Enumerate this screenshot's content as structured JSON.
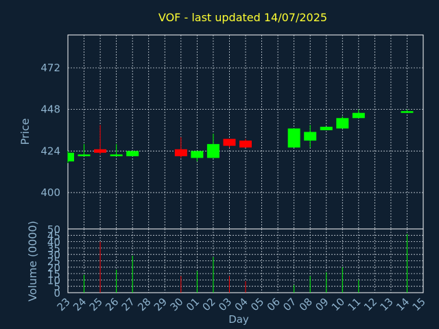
{
  "colors": {
    "background": "#0f1f30",
    "up": "#00ff00",
    "down": "#ff0000",
    "grid": "#d0d8e0",
    "axis_text": "#8fb4cf",
    "title": "#ffff33"
  },
  "chart_data": {
    "type": "candlestick",
    "title": "VOF - last updated 14/07/2025",
    "xlabel": "Day",
    "price": {
      "ylabel": "Price",
      "ylim": [
        379,
        491
      ],
      "yticks": [
        400,
        424,
        448,
        472
      ],
      "grid": true
    },
    "volume": {
      "ylabel": "Volume (0000)",
      "ylim": [
        0,
        50
      ],
      "yticks": [
        0,
        5,
        10,
        15,
        20,
        25,
        30,
        35,
        40,
        45,
        50
      ],
      "grid": true
    },
    "x_ticks": [
      "23",
      "24",
      "25",
      "26",
      "27",
      "28",
      "29",
      "30",
      "01",
      "02",
      "03",
      "04",
      "05",
      "06",
      "07",
      "08",
      "09",
      "10",
      "11",
      "12",
      "13",
      "14",
      "15"
    ],
    "candles": [
      {
        "day": "23",
        "open": 418,
        "high": 424,
        "low": 417,
        "close": 423,
        "volume": 0
      },
      {
        "day": "24",
        "open": 421,
        "high": 428,
        "low": 421,
        "close": 422,
        "volume": 14
      },
      {
        "day": "25",
        "open": 425,
        "high": 439,
        "low": 422,
        "close": 423,
        "volume": 40
      },
      {
        "day": "26",
        "open": 421,
        "high": 428,
        "low": 421,
        "close": 422,
        "volume": 18
      },
      {
        "day": "27",
        "open": 421,
        "high": 424,
        "low": 421,
        "close": 424,
        "volume": 29
      },
      {
        "day": "30",
        "open": 425,
        "high": 432,
        "low": 420,
        "close": 421,
        "volume": 13
      },
      {
        "day": "01",
        "open": 420,
        "high": 424,
        "low": 418,
        "close": 424,
        "volume": 17
      },
      {
        "day": "02",
        "open": 420,
        "high": 434,
        "low": 420,
        "close": 428,
        "volume": 28
      },
      {
        "day": "03",
        "open": 431,
        "high": 431,
        "low": 426,
        "close": 427,
        "volume": 13
      },
      {
        "day": "04",
        "open": 430,
        "high": 431,
        "low": 426,
        "close": 426,
        "volume": 9
      },
      {
        "day": "07",
        "open": 426,
        "high": 437,
        "low": 426,
        "close": 437,
        "volume": 6
      },
      {
        "day": "08",
        "open": 430,
        "high": 439,
        "low": 426,
        "close": 435,
        "volume": 13
      },
      {
        "day": "09",
        "open": 436,
        "high": 438,
        "low": 436,
        "close": 438,
        "volume": 16
      },
      {
        "day": "10",
        "open": 437,
        "high": 444,
        "low": 437,
        "close": 443,
        "volume": 20
      },
      {
        "day": "11",
        "open": 443,
        "high": 448,
        "low": 443,
        "close": 446,
        "volume": 10
      },
      {
        "day": "14",
        "open": 446,
        "high": 448,
        "low": 446,
        "close": 447,
        "volume": 46
      }
    ]
  }
}
